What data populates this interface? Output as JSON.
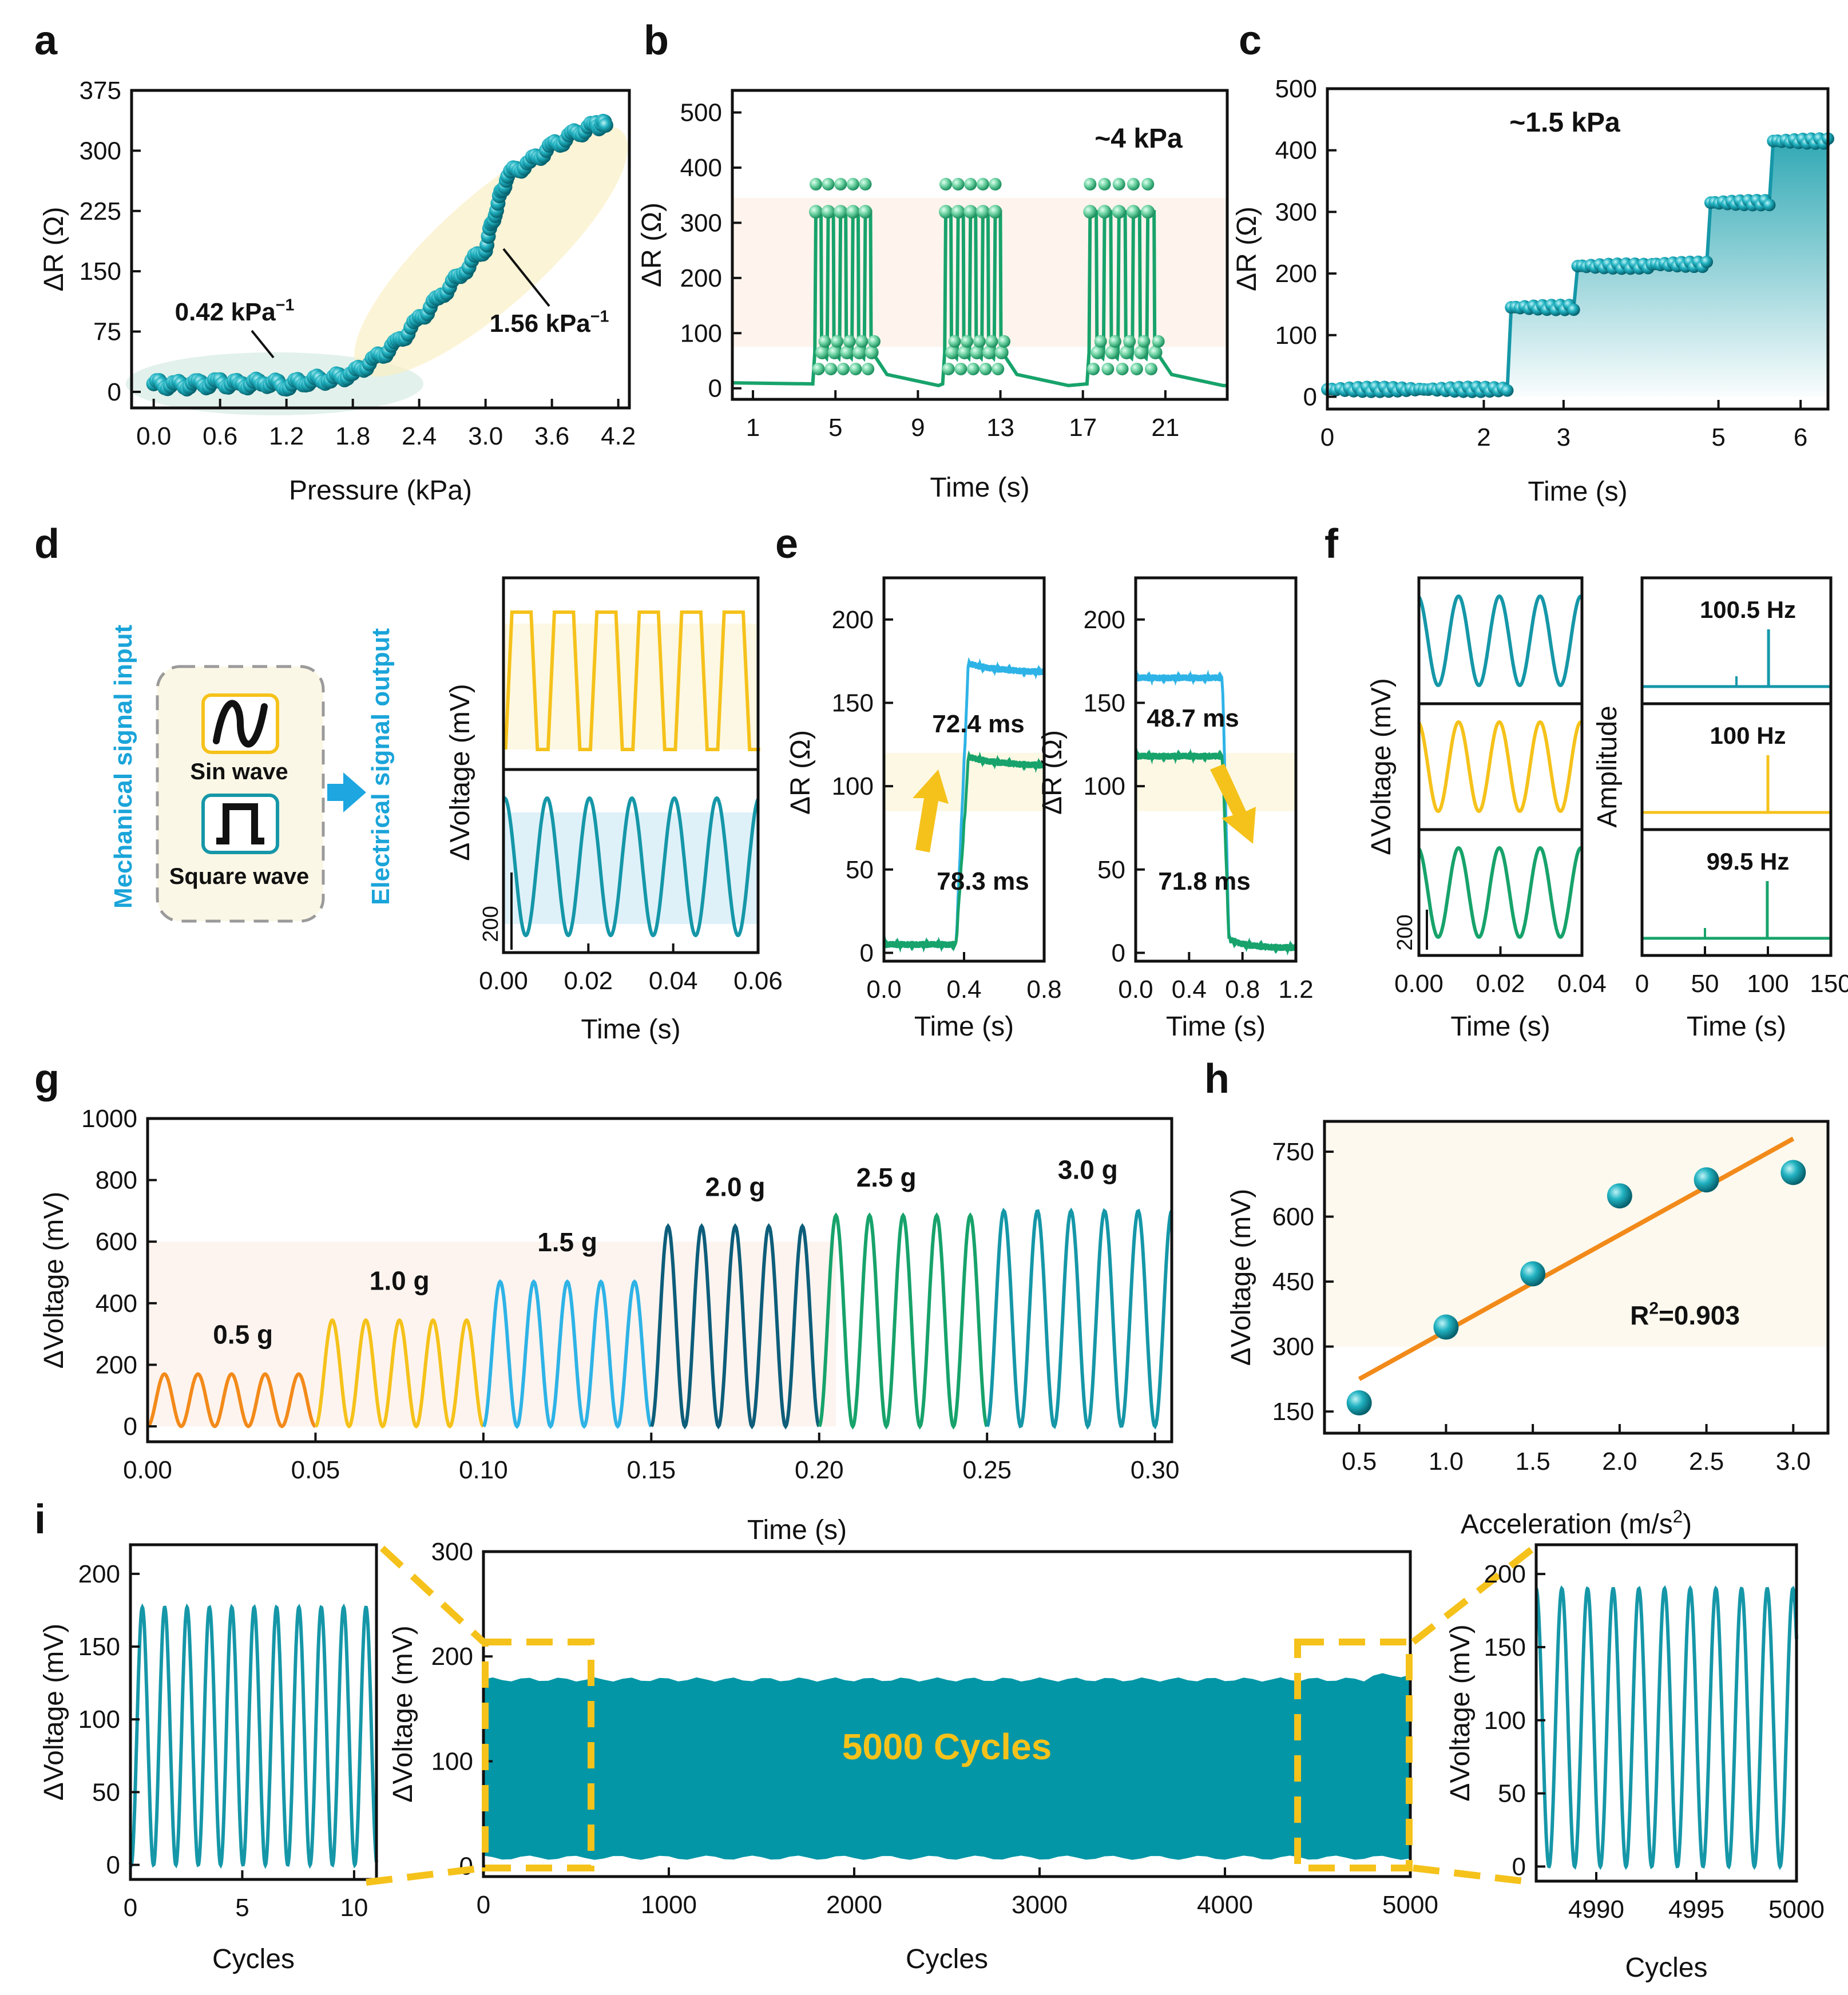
{
  "colors": {
    "teal": "#1597a8",
    "teal_dark": "#0e7f8d",
    "green": "#17a36b",
    "green_light": "#8ad9b0",
    "orange": "#f28a1a",
    "yellow": "#f5c21b",
    "blue_light": "#2eb3e6",
    "navy": "#0d5e7a",
    "dashed": "#f5c21b",
    "cycle_fill": "#0396a6",
    "arrow_blue": "#1da6e0",
    "label_blue": "#1aa4d9"
  },
  "chart_data": [
    {
      "id": "a",
      "type": "scatter",
      "panel_label": "a",
      "xlabel": "Pressure (kPa)",
      "ylabel": "ΔR (Ω)",
      "xlim": [
        -0.2,
        4.3
      ],
      "ylim": [
        -20,
        375
      ],
      "xticks": [
        "0.0",
        "0.6",
        "1.2",
        "1.8",
        "2.4",
        "3.0",
        "3.6",
        "4.2"
      ],
      "yticks": [
        "0",
        "75",
        "150",
        "225",
        "300",
        "375"
      ],
      "x": [
        0.0,
        0.2,
        0.4,
        0.6,
        0.8,
        1.0,
        1.2,
        1.4,
        1.6,
        1.8,
        2.0,
        2.2,
        2.4,
        2.6,
        2.8,
        3.0,
        3.1,
        3.2,
        3.4,
        3.6,
        3.8,
        4.0,
        4.1
      ],
      "y": [
        10,
        8,
        9,
        11,
        9,
        12,
        8,
        14,
        16,
        22,
        40,
        60,
        90,
        120,
        150,
        180,
        230,
        270,
        285,
        305,
        320,
        332,
        332
      ],
      "annotations": [
        {
          "text": "0.42 kPa",
          "sup": "−1"
        },
        {
          "text": "1.56 kPa",
          "sup": "−1"
        }
      ]
    },
    {
      "id": "b",
      "type": "line",
      "panel_label": "b",
      "xlabel": "Time (s)",
      "ylabel": "ΔR (Ω)",
      "xlim": [
        0,
        24
      ],
      "ylim": [
        -20,
        540
      ],
      "xticks": [
        "1",
        "5",
        "9",
        "13",
        "17",
        "21"
      ],
      "yticks": [
        "0",
        "100",
        "200",
        "300",
        "400",
        "500"
      ],
      "annotation": "~4 kPa",
      "groups": [
        {
          "start": 4,
          "end": 7,
          "pulses": 5,
          "peak": 320,
          "base_low": 10,
          "base_high": 65
        },
        {
          "start": 10.3,
          "end": 13.3,
          "pulses": 5,
          "peak": 320,
          "base_low": 10,
          "base_high": 65
        },
        {
          "start": 17.3,
          "end": 20.8,
          "pulses": 5,
          "peak": 320,
          "base_low": 10,
          "base_high": 65
        }
      ]
    },
    {
      "id": "c",
      "type": "line",
      "panel_label": "c",
      "xlabel": "Time (s)",
      "ylabel": "ΔR (Ω)",
      "xlim": [
        0,
        6.4
      ],
      "ylim": [
        -20,
        500
      ],
      "xticks": [
        "0",
        "2",
        "3",
        "5",
        "6"
      ],
      "yticks": [
        "0",
        "100",
        "200",
        "300",
        "400",
        "500"
      ],
      "annotation": "~1.5 kPa",
      "steps": [
        {
          "from": 0.0,
          "to": 2.3,
          "value": 12
        },
        {
          "from": 2.35,
          "to": 3.15,
          "value": 145
        },
        {
          "from": 3.2,
          "to": 4.1,
          "value": 212
        },
        {
          "from": 4.15,
          "to": 4.85,
          "value": 215
        },
        {
          "from": 4.9,
          "to": 5.65,
          "value": 315
        },
        {
          "from": 5.7,
          "to": 6.4,
          "value": 415
        }
      ]
    },
    {
      "id": "d",
      "type": "line",
      "panel_label": "d",
      "xlabel": "Time (s)",
      "ylabel": "ΔVoltage (mV)",
      "xlim": [
        0,
        0.06
      ],
      "xticks": [
        "0.00",
        "0.02",
        "0.04",
        "0.06"
      ],
      "scalebar": "200",
      "series": [
        {
          "name": "Square wave",
          "frequency_hz": 100
        },
        {
          "name": "Sin wave",
          "frequency_hz": 100
        }
      ],
      "diagram": {
        "input_label": "Mechanical signal input",
        "output_label": "Electrical signal output",
        "sin_label": "Sin wave",
        "square_label": "Square wave"
      }
    },
    {
      "id": "e",
      "type": "line",
      "panel_label": "e",
      "xlabel": "Time (s)",
      "ylabel": "ΔR (Ω)",
      "yticks": [
        "0",
        "50",
        "100",
        "150",
        "200"
      ],
      "ylim": [
        -5,
        225
      ],
      "left": {
        "xlim": [
          0,
          0.8
        ],
        "xticks": [
          "0.0",
          "0.4",
          "0.8"
        ],
        "step_time": 0.36,
        "blue": [
          5,
          168
        ],
        "green": [
          5,
          112
        ],
        "labels": [
          "72.4 ms",
          "78.3 ms"
        ]
      },
      "right": {
        "xlim": [
          0,
          1.2
        ],
        "xticks": [
          "0.0",
          "0.4",
          "0.8",
          "1.2"
        ],
        "step_time": 0.65,
        "blue": [
          165,
          3
        ],
        "green": [
          118,
          3
        ],
        "labels": [
          "48.7 ms",
          "71.8 ms"
        ]
      }
    },
    {
      "id": "f",
      "type": "line",
      "panel_label": "f",
      "ylabel_left": "ΔVoltage (mV)",
      "ylabel_right": "Amplitude",
      "xlabel": "Time (s)",
      "left_xticks": [
        "0.00",
        "0.02",
        "0.04"
      ],
      "right_xticks": [
        "0",
        "50",
        "100",
        "150"
      ],
      "scalebar": "200",
      "series": [
        {
          "name": "100.5 Hz",
          "peak": 100.5
        },
        {
          "name": "100 Hz",
          "peak": 100
        },
        {
          "name": "99.5 Hz",
          "peak": 99.5
        }
      ]
    },
    {
      "id": "g",
      "type": "line",
      "panel_label": "g",
      "xlabel": "Time (s)",
      "ylabel": "ΔVoltage (mV)",
      "xlim": [
        0,
        0.305
      ],
      "ylim": [
        -50,
        1000
      ],
      "xticks": [
        "0.00",
        "0.05",
        "0.10",
        "0.15",
        "0.20",
        "0.25",
        "0.30"
      ],
      "yticks": [
        "0",
        "200",
        "400",
        "600",
        "800",
        "1000"
      ],
      "segments": [
        {
          "label": "0.5 g",
          "from": 0.0,
          "to": 0.05,
          "amplitude": 170
        },
        {
          "label": "1.0 g",
          "from": 0.05,
          "to": 0.1,
          "amplitude": 345
        },
        {
          "label": "1.5 g",
          "from": 0.1,
          "to": 0.15,
          "amplitude": 470
        },
        {
          "label": "2.0 g",
          "from": 0.15,
          "to": 0.2,
          "amplitude": 650
        },
        {
          "label": "2.5 g",
          "from": 0.2,
          "to": 0.25,
          "amplitude": 685
        },
        {
          "label": "3.0 g",
          "from": 0.25,
          "to": 0.305,
          "amplitude": 700
        }
      ]
    },
    {
      "id": "h",
      "type": "scatter",
      "panel_label": "h",
      "xlabel": "Acceleration (m/s",
      "xlabel_sup": "2",
      "xlabel_end": ")",
      "ylabel": "ΔVoltage (mV)",
      "xlim": [
        0.3,
        3.2
      ],
      "ylim": [
        100,
        820
      ],
      "xticks": [
        "0.5",
        "1.0",
        "1.5",
        "2.0",
        "2.5",
        "3.0"
      ],
      "yticks": [
        "150",
        "300",
        "450",
        "600",
        "750"
      ],
      "x": [
        0.5,
        1.0,
        1.5,
        2.0,
        2.5,
        3.0
      ],
      "y": [
        170,
        345,
        468,
        648,
        685,
        702
      ],
      "fit": {
        "x": [
          0.5,
          3.0
        ],
        "y": [
          225,
          780
        ]
      },
      "annotation": "R",
      "annotation_sup": "2",
      "annotation_end": "=0.903"
    },
    {
      "id": "i",
      "type": "line",
      "panel_label": "i",
      "xlabel": "Cycles",
      "ylabel": "ΔVoltage (mV)",
      "center": {
        "xlim": [
          0,
          5000
        ],
        "ylim": [
          -10,
          300
        ],
        "xticks": [
          "0",
          "1000",
          "2000",
          "3000",
          "4000",
          "5000"
        ],
        "yticks": [
          "0",
          "100",
          "200",
          "300"
        ],
        "band": [
          8,
          178
        ],
        "annotation": "5000 Cycles"
      },
      "left": {
        "xlim": [
          0,
          11
        ],
        "ylim": [
          -10,
          220
        ],
        "xticks": [
          "0",
          "5",
          "10"
        ],
        "yticks": [
          "0",
          "50",
          "100",
          "150",
          "200"
        ],
        "amplitude": 177
      },
      "right": {
        "xlim": [
          4987,
          5000
        ],
        "ylim": [
          -10,
          220
        ],
        "xticks": [
          "4990",
          "4995",
          "5000"
        ],
        "yticks": [
          "0",
          "50",
          "100",
          "150",
          "200"
        ],
        "amplitude": 190
      }
    }
  ]
}
